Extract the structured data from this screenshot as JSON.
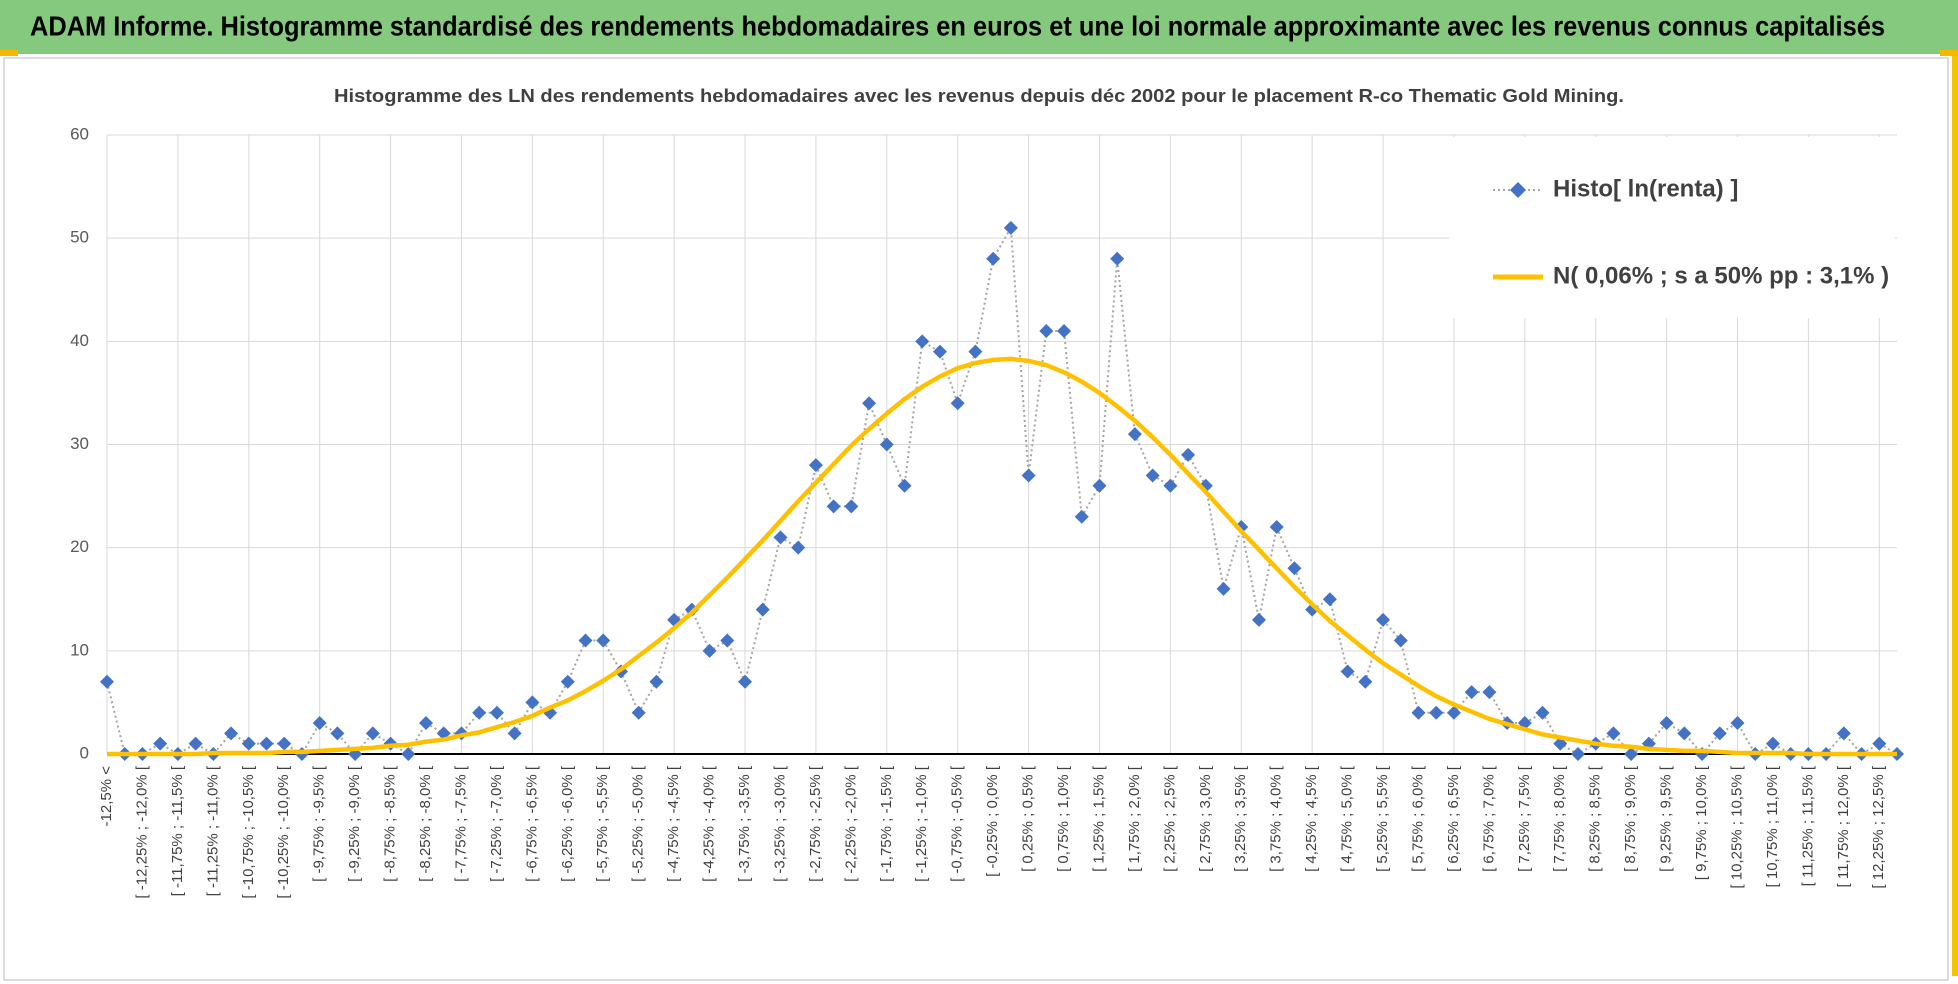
{
  "header": {
    "title": "ADAM Informe. Histogramme standardisé des rendements hebdomadaires en euros et une loi normale approximante avec les revenus connus capitalisés"
  },
  "chart_data": {
    "type": "line",
    "title": "Histogramme des LN des rendements hebdomadaires avec les revenus depuis déc 2002 pour le placement R-co Thematic Gold Mining.",
    "categories": [
      "-12,5% <",
      null,
      "[ -12,25% ; -12,0% [",
      null,
      "[ -11,75% ; -11,5% [",
      null,
      "[ -11,25% ; -11,0% [",
      null,
      "[ -10,75% ; -10,5% [",
      null,
      "[ -10,25% ; -10,0% [",
      null,
      "[ -9,75% ; -9,5% [",
      null,
      "[ -9,25% ; -9,0% [",
      null,
      "[ -8,75% ; -8,5% [",
      null,
      "[ -8,25% ; -8,0% [",
      null,
      "[ -7,75% ; -7,5% [",
      null,
      "[ -7,25% ; -7,0% [",
      null,
      "[ -6,75% ; -6,5% [",
      null,
      "[ -6,25% ; -6,0% [",
      null,
      "[ -5,75% ; -5,5% [",
      null,
      "[ -5,25% ; -5,0% [",
      null,
      "[ -4,75% ; -4,5% [",
      null,
      "[ -4,25% ; -4,0% [",
      null,
      "[ -3,75% ; -3,5% [",
      null,
      "[ -3,25% ; -3,0% [",
      null,
      "[ -2,75% ; -2,5% [",
      null,
      "[ -2,25% ; -2,0% [",
      null,
      "[ -1,75% ; -1,5% [",
      null,
      "[ -1,25% ; -1,0% [",
      null,
      "[ -0,75% ; -0,5% [",
      null,
      "[ -0,25% ; 0,0% [",
      null,
      "[ 0,25% ; 0,5% [",
      null,
      "[ 0,75% ; 1,0% [",
      null,
      "[ 1,25% ; 1,5% [",
      null,
      "[ 1,75% ; 2,0% [",
      null,
      "[ 2,25% ; 2,5% [",
      null,
      "[ 2,75% ; 3,0% [",
      null,
      "[ 3,25% ; 3,5% [",
      null,
      "[ 3,75% ; 4,0% [",
      null,
      "[ 4,25% ; 4,5% [",
      null,
      "[ 4,75% ; 5,0% [",
      null,
      "[ 5,25% ; 5,5% [",
      null,
      "[ 5,75% ; 6,0% [",
      null,
      "[ 6,25% ; 6,5% [",
      null,
      "[ 6,75% ; 7,0% [",
      null,
      "[ 7,25% ; 7,5% [",
      null,
      "[ 7,75% ; 8,0% [",
      null,
      "[ 8,25% ; 8,5% [",
      null,
      "[ 8,75% ; 9,0% [",
      null,
      "[ 9,25% ; 9,5% [",
      null,
      "[ 9,75% ; 10,0% [",
      null,
      "[ 10,25% ; 10,5% [",
      null,
      "[ 10,75% ; 11,0% [",
      null,
      "[ 11,25% ; 11,5% [",
      null,
      "[ 11,75% ; 12,0% [",
      null,
      "[ 12,25% ; 12,5% [",
      null
    ],
    "series": [
      {
        "name": "Histo[ ln(renta) ]",
        "color": "#4472c4",
        "line_color": "#a5a5a5",
        "marker": "diamond",
        "values": [
          7,
          0,
          0,
          1,
          0,
          1,
          0,
          2,
          1,
          1,
          1,
          0,
          3,
          2,
          0,
          2,
          1,
          0,
          3,
          2,
          2,
          4,
          4,
          2,
          5,
          4,
          7,
          11,
          11,
          8,
          4,
          7,
          13,
          14,
          10,
          11,
          7,
          14,
          21,
          20,
          28,
          24,
          24,
          34,
          30,
          26,
          40,
          39,
          34,
          39,
          48,
          51,
          27,
          41,
          41,
          23,
          26,
          48,
          31,
          27,
          26,
          29,
          26,
          16,
          22,
          13,
          22,
          18,
          14,
          15,
          8,
          7,
          13,
          11,
          4,
          4,
          4,
          6,
          6,
          3,
          3,
          4,
          1,
          0,
          1,
          2,
          0,
          1,
          3,
          2,
          0,
          2,
          3,
          0,
          1,
          0,
          0,
          0,
          2,
          0,
          1,
          0
        ]
      },
      {
        "name": "N( 0,06% ; s a 50% pp : 3,1% )",
        "color": "#ffc000",
        "values": [
          0,
          0,
          0,
          0,
          0,
          0,
          0.1,
          0.1,
          0.1,
          0.1,
          0.2,
          0.2,
          0.3,
          0.4,
          0.5,
          0.6,
          0.8,
          0.9,
          1.2,
          1.4,
          1.8,
          2.1,
          2.6,
          3.1,
          3.7,
          4.5,
          5.2,
          6.1,
          7.1,
          8.2,
          9.5,
          10.8,
          12.2,
          13.7,
          15.4,
          17.1,
          18.9,
          20.7,
          22.6,
          24.5,
          26.3,
          28.1,
          29.9,
          31.5,
          33.0,
          34.4,
          35.6,
          36.6,
          37.4,
          37.9,
          38.2,
          38.3,
          38.1,
          37.7,
          37.0,
          36.1,
          35.0,
          33.7,
          32.3,
          30.7,
          29.0,
          27.2,
          25.4,
          23.5,
          21.6,
          19.8,
          18.0,
          16.2,
          14.5,
          12.9,
          11.5,
          10.1,
          8.8,
          7.7,
          6.6,
          5.6,
          4.8,
          4.1,
          3.4,
          2.9,
          2.4,
          1.9,
          1.6,
          1.3,
          1.0,
          0.8,
          0.7,
          0.5,
          0.4,
          0.3,
          0.3,
          0.2,
          0.1,
          0.1,
          0.1,
          0.1,
          0,
          0,
          0,
          0,
          0,
          0
        ]
      }
    ],
    "ylim": [
      0,
      60
    ],
    "yticks": [
      0,
      10,
      20,
      30,
      40,
      50,
      60
    ],
    "grid": true,
    "legend": "top-right"
  }
}
